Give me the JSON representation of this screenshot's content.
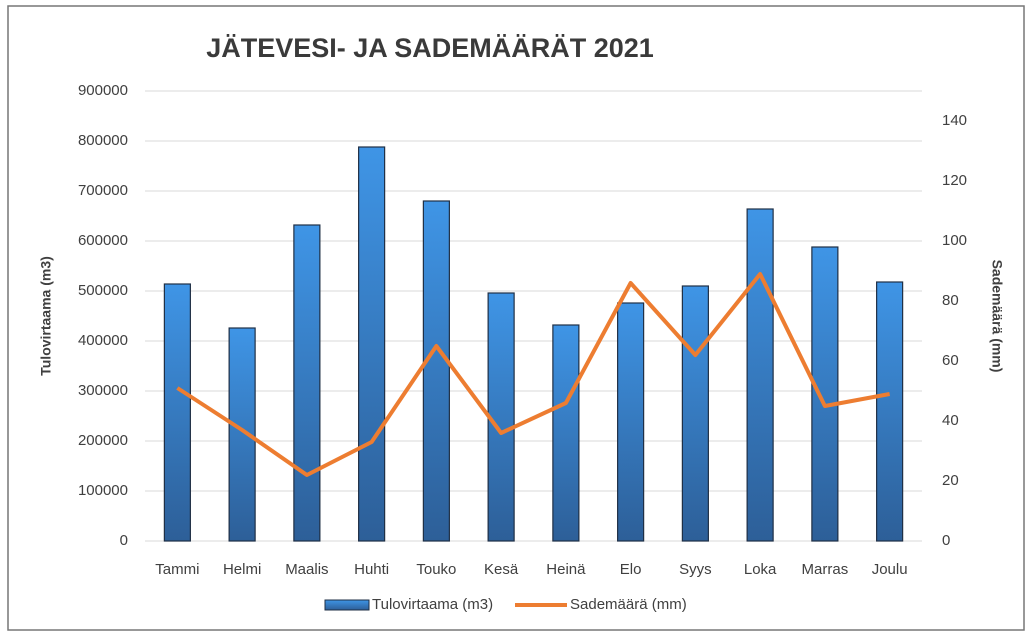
{
  "chart_data": {
    "type": "bar_line",
    "title": "JÄTEVESI- JA SADEMÄÄRÄT 2021",
    "y_label": "Tulovirtaama (m3)",
    "y2_label": "Sademäärä (mm)",
    "categories": [
      "Tammi",
      "Helmi",
      "Maalis",
      "Huhti",
      "Touko",
      "Kesä",
      "Heinä",
      "Elo",
      "Syys",
      "Loka",
      "Marras",
      "Joulu"
    ],
    "series": [
      {
        "name": "Tulovirtaama (m3)",
        "type": "bar",
        "color": "#3a8ddc",
        "values": [
          514000,
          426000,
          632000,
          788000,
          680000,
          496000,
          432000,
          476000,
          510000,
          664000,
          588000,
          518000
        ]
      },
      {
        "name": "Sademäärä (mm)",
        "type": "line",
        "axis": "y2",
        "color": "#ed7d31",
        "values": [
          51,
          37,
          22,
          33,
          65,
          36,
          46,
          86,
          62,
          89,
          45,
          49
        ]
      }
    ],
    "ylim": [
      0,
      900000
    ],
    "yticks": [
      0,
      100000,
      200000,
      300000,
      400000,
      500000,
      600000,
      700000,
      800000,
      900000
    ],
    "y2lim": [
      0,
      150
    ],
    "y2ticks": [
      0,
      20,
      40,
      60,
      80,
      100,
      120,
      140
    ],
    "grid": true,
    "legend": "bottom"
  }
}
